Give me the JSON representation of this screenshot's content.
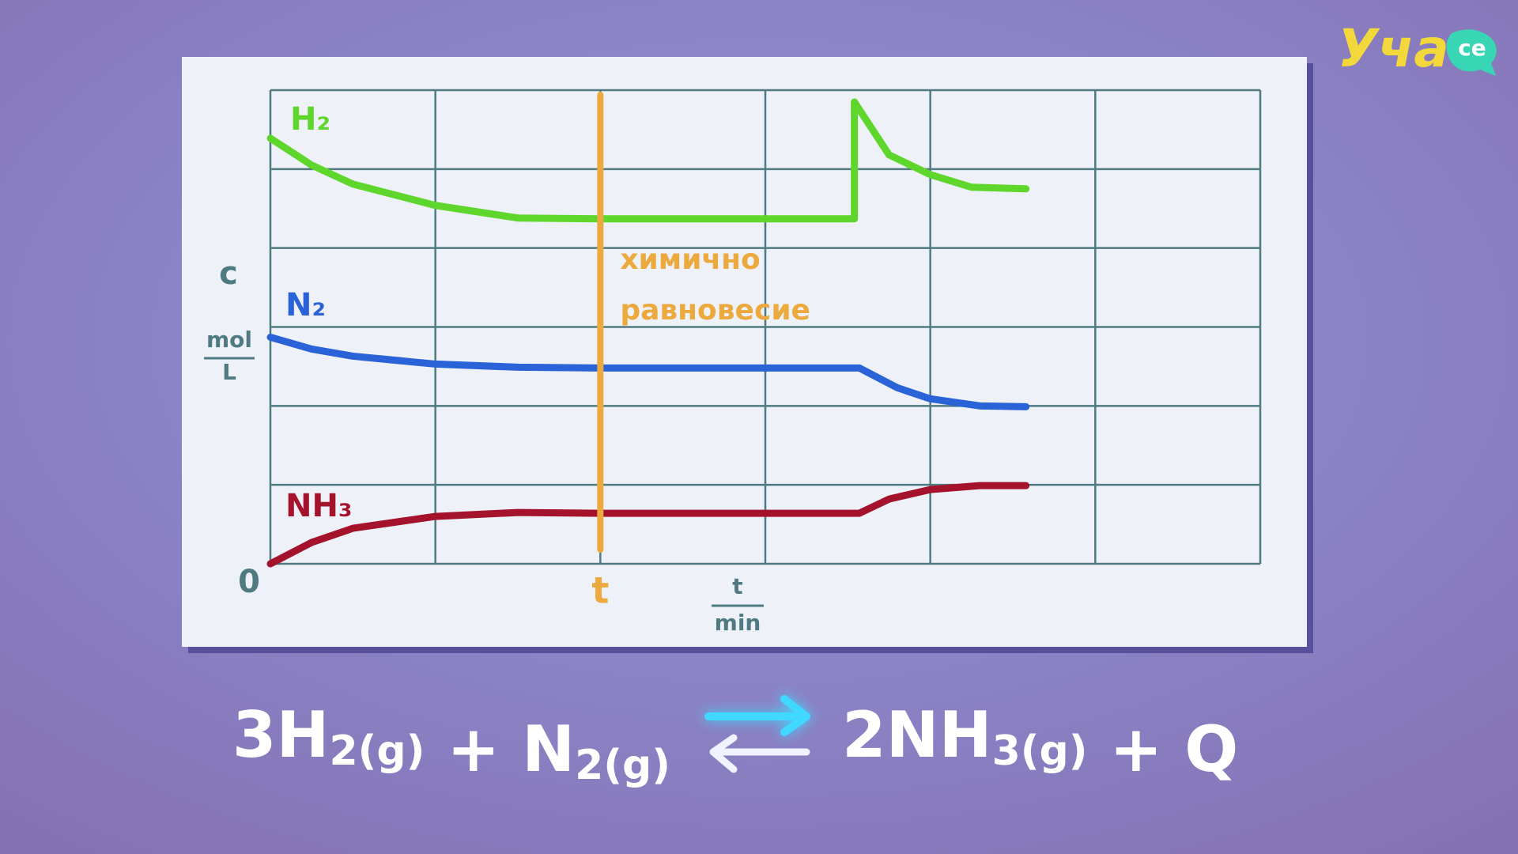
{
  "chart_data": {
    "type": "line",
    "y_label": "c",
    "y_unit": {
      "numerator": "mol",
      "denominator": "L"
    },
    "x_unit": {
      "numerator": "t",
      "denominator": "min"
    },
    "origin_label": "0",
    "xlim": [
      0,
      6
    ],
    "ylim": [
      0,
      6
    ],
    "xticks": [
      0,
      1,
      2,
      3,
      4,
      5,
      6
    ],
    "yticks": [
      0,
      1,
      2,
      3,
      4,
      5,
      6
    ],
    "grid": true,
    "series": [
      {
        "name": "H₂",
        "color": "#5fd62b",
        "x": [
          0,
          0.25,
          0.5,
          1,
          1.5,
          2,
          2.5,
          3,
          3.54,
          3.54,
          3.75,
          4,
          4.25,
          4.58
        ],
        "values": [
          5.39,
          5.05,
          4.81,
          4.54,
          4.38,
          4.37,
          4.37,
          4.37,
          4.37,
          5.85,
          5.18,
          4.93,
          4.77,
          4.75
        ]
      },
      {
        "name": "N₂",
        "color": "#2a62d8",
        "x": [
          0,
          0.25,
          0.5,
          1,
          1.5,
          2,
          2.5,
          3,
          3.57,
          3.8,
          4,
          4.3,
          4.58
        ],
        "values": [
          2.87,
          2.72,
          2.63,
          2.53,
          2.49,
          2.48,
          2.48,
          2.48,
          2.48,
          2.23,
          2.09,
          2.0,
          1.99
        ]
      },
      {
        "name": "NH₃",
        "color": "#a5122c",
        "x": [
          0,
          0.25,
          0.5,
          1,
          1.5,
          2,
          2.5,
          3,
          3.57,
          3.75,
          4,
          4.3,
          4.58
        ],
        "values": [
          0,
          0.27,
          0.45,
          0.6,
          0.65,
          0.64,
          0.64,
          0.64,
          0.64,
          0.82,
          0.94,
          0.99,
          0.99
        ]
      }
    ],
    "marker": {
      "x": 2,
      "label": "t",
      "color": "#eca93e",
      "annotation": [
        "химично",
        "равновесие"
      ]
    }
  },
  "equation": {
    "left": [
      {
        "text": "3H",
        "sub": "2(g)"
      },
      {
        "text": " + N",
        "sub": "2(g)"
      }
    ],
    "right": [
      {
        "text": "2NH",
        "sub": "3(g)"
      },
      {
        "text": " + Q"
      }
    ]
  },
  "logo": {
    "main": "Уча",
    "badge": "се"
  }
}
